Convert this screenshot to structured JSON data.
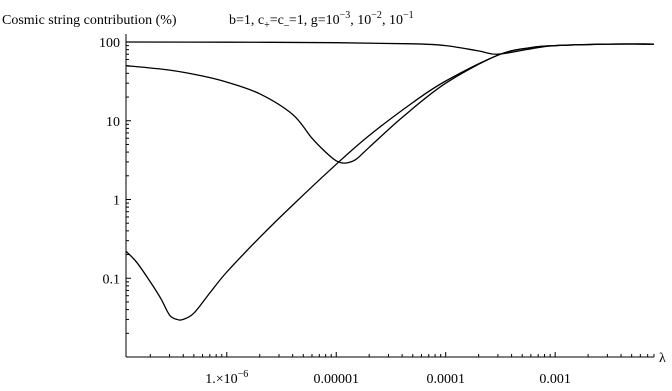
{
  "chart_data": {
    "type": "line",
    "ylabel": "Cosmic string contribution (%)",
    "xlabel": "λ",
    "annotation": {
      "parts": [
        {
          "t": "b=1, c",
          "s": "n"
        },
        {
          "t": "+",
          "s": "sub"
        },
        {
          "t": "=c",
          "s": "n"
        },
        {
          "t": "–",
          "s": "sub"
        },
        {
          "t": "=1, g=10",
          "s": "n"
        },
        {
          "t": "−3",
          "s": "sup"
        },
        {
          "t": ", 10",
          "s": "n"
        },
        {
          "t": "−2",
          "s": "sup"
        },
        {
          "t": ", 10",
          "s": "n"
        },
        {
          "t": "−1",
          "s": "sup"
        }
      ]
    },
    "x_scale": "log",
    "y_scale": "log",
    "xlim": [
      1.2e-07,
      0.008
    ],
    "ylim": [
      0.01,
      100
    ],
    "x_ticks": [
      {
        "value": 1e-06,
        "label": "1.×10",
        "exp": "−6"
      },
      {
        "value": 1e-05,
        "label": "0.00001"
      },
      {
        "value": 0.0001,
        "label": "0.0001"
      },
      {
        "value": 0.001,
        "label": "0.001"
      }
    ],
    "y_ticks": [
      {
        "value": 0.1,
        "label": "0.1"
      },
      {
        "value": 1,
        "label": "1"
      },
      {
        "value": 10,
        "label": "10"
      },
      {
        "value": 100,
        "label": "100"
      }
    ],
    "grid": false,
    "legend": "none",
    "series": [
      {
        "points": [
          [
            1.2e-07,
            100
          ],
          [
            1e-06,
            99.5
          ],
          [
            1e-05,
            98
          ],
          [
            5e-05,
            95
          ],
          [
            0.0001,
            90
          ],
          [
            0.0002,
            77
          ],
          [
            0.0003,
            70
          ],
          [
            0.0006,
            82
          ],
          [
            0.001,
            90
          ],
          [
            0.003,
            94
          ],
          [
            0.008,
            94
          ]
        ]
      },
      {
        "points": [
          [
            1.2e-07,
            50
          ],
          [
            3e-07,
            44
          ],
          [
            6e-07,
            37
          ],
          [
            1e-06,
            31
          ],
          [
            2e-06,
            22
          ],
          [
            4e-06,
            12
          ],
          [
            6e-06,
            6
          ],
          [
            8e-06,
            4
          ],
          [
            1e-05,
            3.1
          ],
          [
            1.2e-05,
            2.9
          ],
          [
            1.5e-05,
            3.2
          ],
          [
            2e-05,
            4.6
          ],
          [
            4e-05,
            11
          ],
          [
            0.0001,
            30
          ],
          [
            0.0003,
            68
          ],
          [
            0.0006,
            85
          ],
          [
            0.001,
            90
          ],
          [
            0.003,
            94
          ],
          [
            0.008,
            94
          ]
        ]
      },
      {
        "points": [
          [
            1.2e-07,
            0.22
          ],
          [
            1.5e-07,
            0.16
          ],
          [
            2e-07,
            0.09
          ],
          [
            2.5e-07,
            0.055
          ],
          [
            3e-07,
            0.034
          ],
          [
            3.5e-07,
            0.03
          ],
          [
            4e-07,
            0.03
          ],
          [
            5e-07,
            0.036
          ],
          [
            7e-07,
            0.065
          ],
          [
            1e-06,
            0.12
          ],
          [
            2e-06,
            0.33
          ],
          [
            4e-06,
            0.85
          ],
          [
            1e-05,
            2.8
          ],
          [
            2e-05,
            6.5
          ],
          [
            5e-05,
            17
          ],
          [
            0.0001,
            32
          ],
          [
            0.0003,
            68
          ],
          [
            0.0006,
            85
          ],
          [
            0.001,
            90
          ],
          [
            0.003,
            94
          ],
          [
            0.008,
            94
          ]
        ]
      }
    ]
  }
}
